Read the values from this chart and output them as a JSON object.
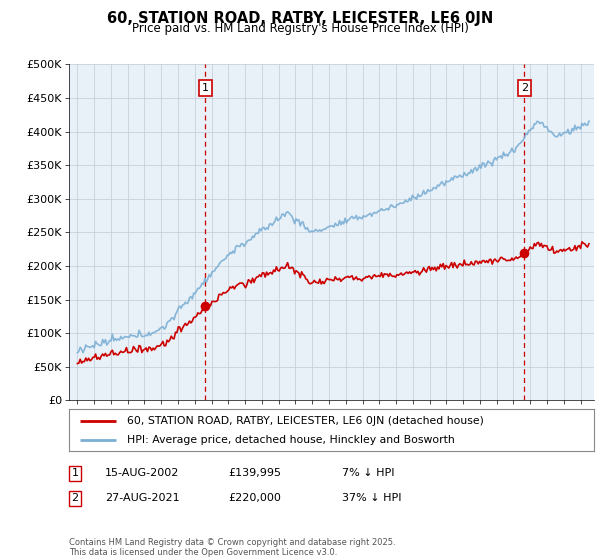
{
  "title": "60, STATION ROAD, RATBY, LEICESTER, LE6 0JN",
  "subtitle": "Price paid vs. HM Land Registry's House Price Index (HPI)",
  "ylim": [
    0,
    500000
  ],
  "yticks": [
    0,
    50000,
    100000,
    150000,
    200000,
    250000,
    300000,
    350000,
    400000,
    450000,
    500000
  ],
  "ytick_labels": [
    "£0",
    "£50K",
    "£100K",
    "£150K",
    "£200K",
    "£250K",
    "£300K",
    "£350K",
    "£400K",
    "£450K",
    "£500K"
  ],
  "hpi_color": "#7bafd4",
  "price_color": "#cc0000",
  "vline_color": "#cc0000",
  "chart_bg": "#e8f0f8",
  "transaction1": {
    "date_label": "15-AUG-2002",
    "price": 139995,
    "pct": "7% ↓ HPI",
    "x": 2002.62
  },
  "transaction2": {
    "date_label": "27-AUG-2021",
    "price": 220000,
    "pct": "37% ↓ HPI",
    "x": 2021.65
  },
  "legend_entry1": "60, STATION ROAD, RATBY, LEICESTER, LE6 0JN (detached house)",
  "legend_entry2": "HPI: Average price, detached house, Hinckley and Bosworth",
  "footnote": "Contains HM Land Registry data © Crown copyright and database right 2025.\nThis data is licensed under the Open Government Licence v3.0.",
  "background_color": "#ffffff",
  "grid_color": "#c0ccd8"
}
